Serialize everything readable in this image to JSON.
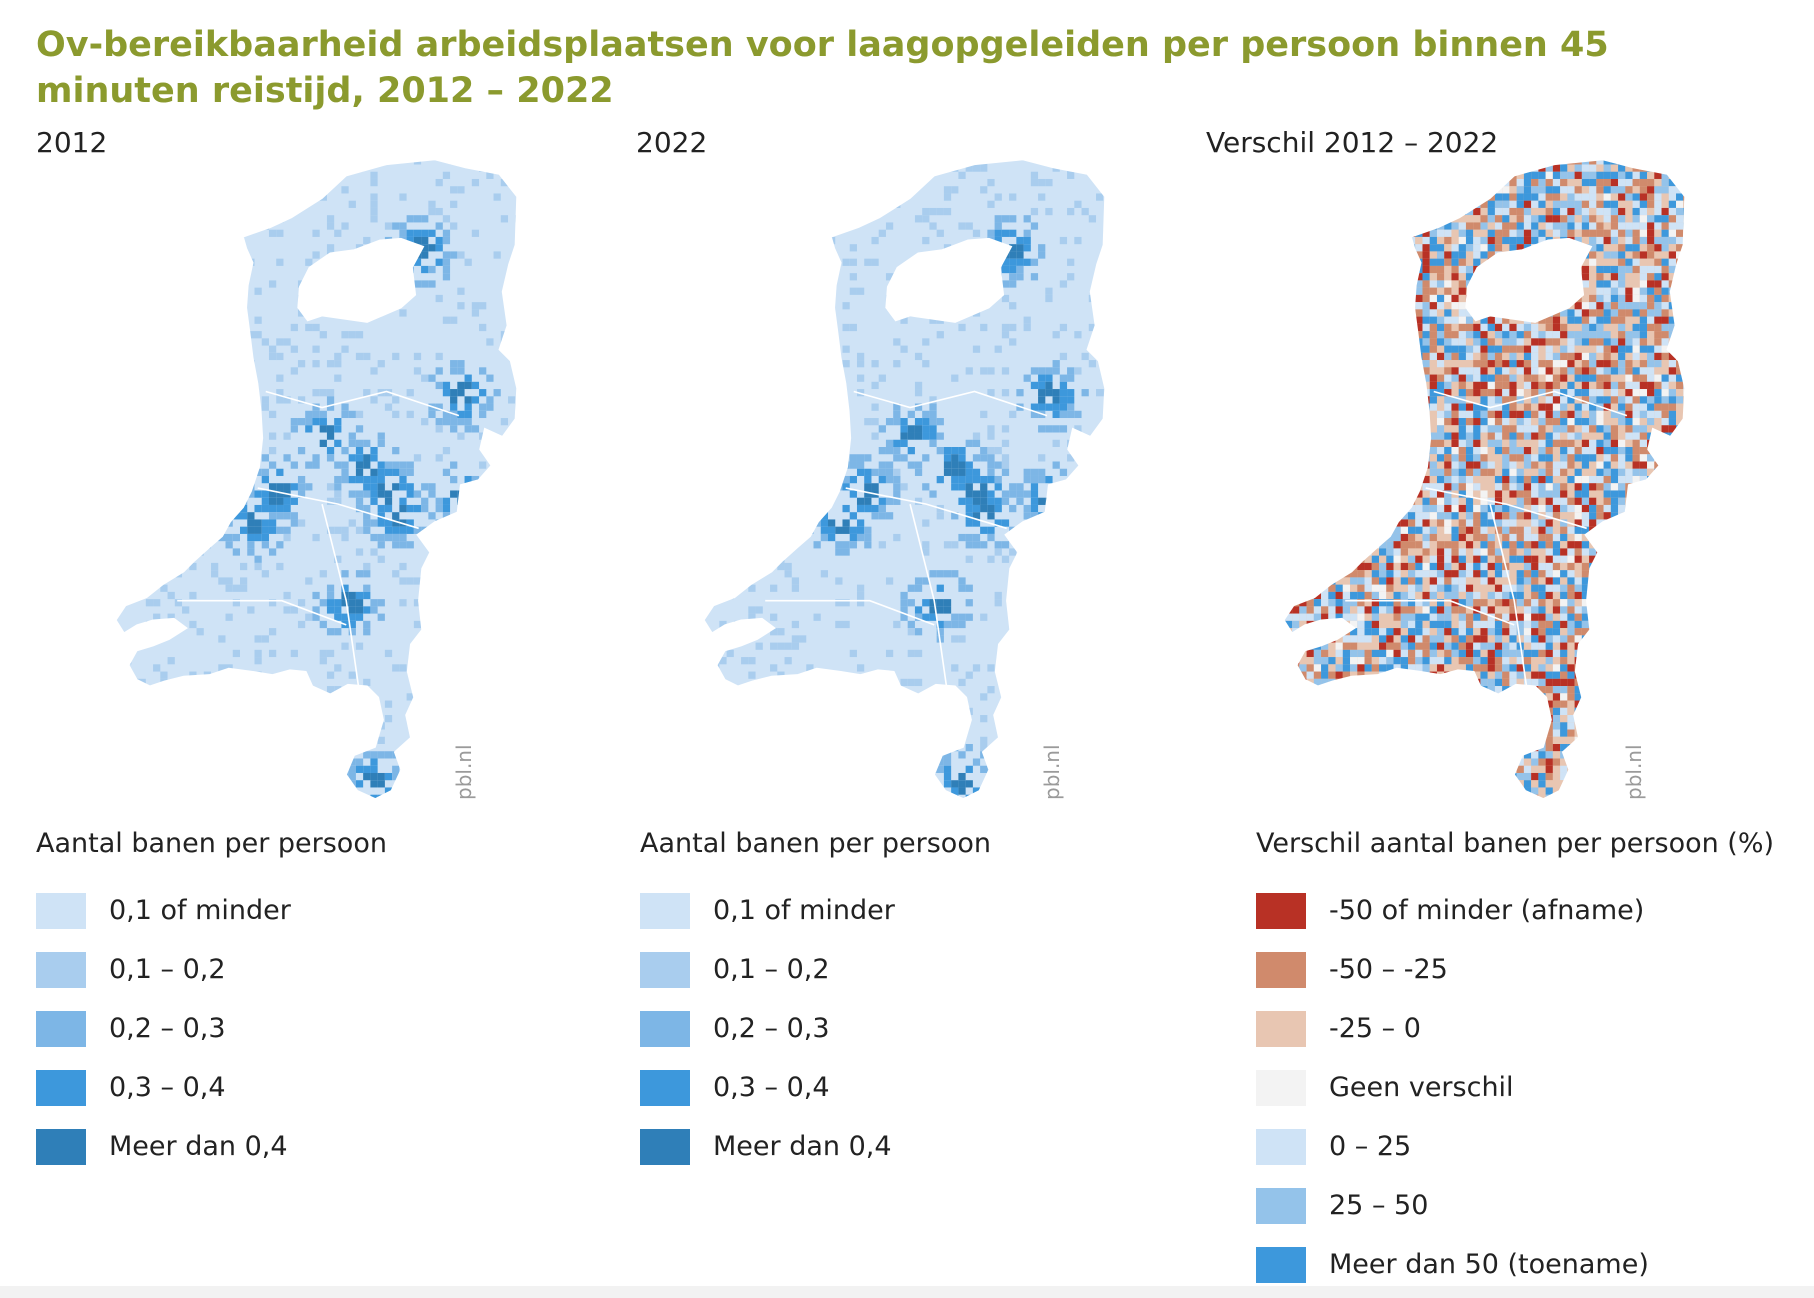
{
  "title": "Ov-bereikbaarheid arbeidsplaatsen voor laagopgeleiden per persoon binnen 45 minuten reistijd, 2012 – 2022",
  "credit": "pbl.nl",
  "maps": [
    {
      "id": "map-2012",
      "title": "2012",
      "legend_title": "Aantal banen per persoon",
      "legend": [
        {
          "label": "0,1 of minder",
          "color": "#cfe3f6"
        },
        {
          "label": "0,1 – 0,2",
          "color": "#a9cdee"
        },
        {
          "label": "0,2 – 0,3",
          "color": "#7db6e6"
        },
        {
          "label": "0,3 – 0,4",
          "color": "#3d98dc"
        },
        {
          "label": "Meer dan 0,4",
          "color": "#2f7fb8"
        }
      ]
    },
    {
      "id": "map-2022",
      "title": "2022",
      "legend_title": "Aantal banen per persoon",
      "legend": [
        {
          "label": "0,1 of minder",
          "color": "#cfe3f6"
        },
        {
          "label": "0,1 – 0,2",
          "color": "#a9cdee"
        },
        {
          "label": "0,2 – 0,3",
          "color": "#7db6e6"
        },
        {
          "label": "0,3 – 0,4",
          "color": "#3d98dc"
        },
        {
          "label": "Meer dan 0,4",
          "color": "#2f7fb8"
        }
      ]
    },
    {
      "id": "map-diff",
      "title": "Verschil 2012 – 2022",
      "legend_title": "Verschil aantal banen per persoon (%)",
      "legend": [
        {
          "label": "-50 of minder (afname)",
          "color": "#b83125"
        },
        {
          "label": "-50 – -25",
          "color": "#d08a6c"
        },
        {
          "label": "-25 – 0",
          "color": "#e8c6b2"
        },
        {
          "label": "Geen verschil",
          "color": "#f3f3f3"
        },
        {
          "label": "0 – 25",
          "color": "#cfe3f6"
        },
        {
          "label": "25 – 50",
          "color": "#94c3ea"
        },
        {
          "label": "Meer dan 50 (toename)",
          "color": "#3d98dc"
        }
      ]
    }
  ]
}
